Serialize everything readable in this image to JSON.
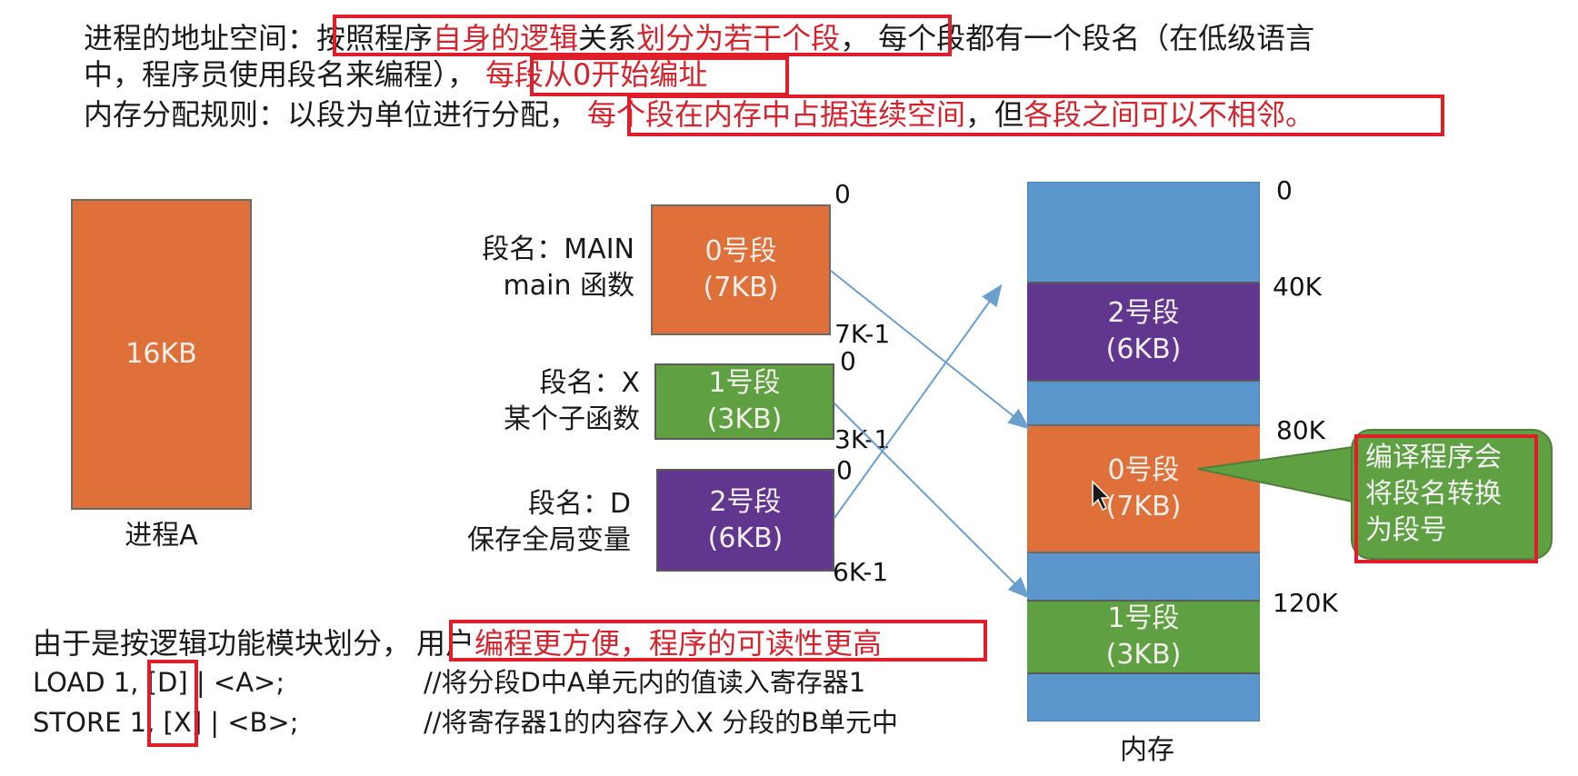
{
  "header": {
    "line1": {
      "prefix": "进程的地址空间：",
      "boxed_parts": [
        {
          "text": "按照程序",
          "red": false
        },
        {
          "text": "自身的逻辑",
          "red": true
        },
        {
          "text": "关系",
          "red": false
        },
        {
          "text": "划分为若干个段",
          "red": true
        },
        {
          "text": "，",
          "red": false
        }
      ],
      "suffix": "每个段都有一个段名（在低级语言"
    },
    "line2": {
      "prefix": "中，程序员使用段名来编程），",
      "boxed": "每段从0开始编址"
    },
    "line3": {
      "prefix": "内存分配规则：以段为单位进行分配，",
      "boxed_parts": [
        {
          "text": "每个段在内存中占据连续空间",
          "red": true
        },
        {
          "text": "，但",
          "red": false
        },
        {
          "text": "各段之间可以不相邻。",
          "red": true
        }
      ]
    }
  },
  "process": {
    "size_label": "16KB",
    "caption": "进程A"
  },
  "segments": [
    {
      "name_line1": "段名：MAIN",
      "name_line2": "main 函数",
      "title": "0号段",
      "size": "(7KB)",
      "start": "0",
      "end": "7K-1"
    },
    {
      "name_line1": "段名：X",
      "name_line2": "某个子函数",
      "title": "1号段",
      "size": "(3KB)",
      "start": "0",
      "end": "3K-1"
    },
    {
      "name_line1": "段名：D",
      "name_line2": "保存全局变量",
      "title": "2号段",
      "size": "(6KB)",
      "start": "0",
      "end": "6K-1"
    }
  ],
  "memory": {
    "caption": "内存",
    "addresses": [
      "0",
      "40K",
      "80K",
      "120K"
    ],
    "blocks": [
      {
        "title": "2号段",
        "size": "(6KB)"
      },
      {
        "title": "0号段",
        "size": "(7KB)"
      },
      {
        "title": "1号段",
        "size": "(3KB)"
      }
    ]
  },
  "callout": {
    "lines": [
      "编译程序会",
      "将段名转换",
      "为段号"
    ]
  },
  "bottom": {
    "line1": {
      "prefix": "由于是按逻辑功能模块划分，",
      "boxed_parts": [
        {
          "text": "用户",
          "red": false
        },
        {
          "text": "编程更方便，程序的可读性更高",
          "red": true
        }
      ]
    },
    "code": [
      {
        "pre": "LOAD 1, ",
        "boxed": "[D]",
        "post": " | <A>;",
        "comment": "//将分段D中A单元内的值读入寄存器1"
      },
      {
        "pre": "STORE 1, ",
        "boxed": "[X]",
        "post": " | <B>;",
        "comment": "//将寄存器1的内容存入X 分段的B单元中"
      }
    ]
  },
  "colors": {
    "segment0": "#e0703a",
    "segment1": "#5fa042",
    "segment2": "#60368f",
    "memory_free": "#5b96cd",
    "highlight_box": "#e01e2a",
    "arrow": "#6a9fcf"
  }
}
